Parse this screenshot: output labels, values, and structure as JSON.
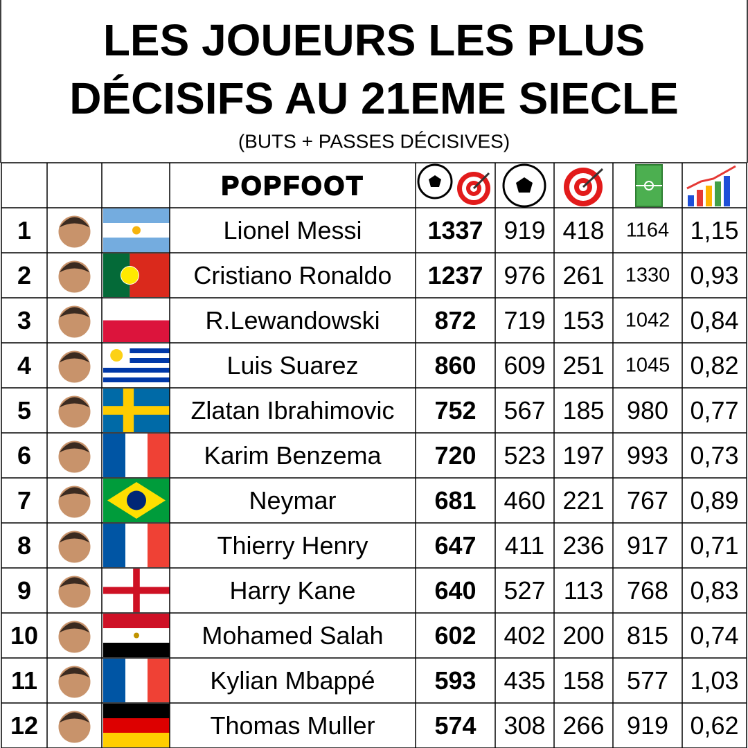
{
  "header": {
    "title_line1": "LES JOUEURS LES PLUS",
    "title_line2": "DÉCISIFS AU 21EME SIECLE",
    "subtitle": "(BUTS + PASSES DÉCISIVES)",
    "logo": "POPFOOT"
  },
  "table": {
    "rows": [
      [
        1,
        "Lionel Messi",
        1337,
        919,
        418,
        1164,
        "1,15"
      ],
      [
        2,
        "Cristiano Ronaldo",
        1237,
        976,
        261,
        1330,
        "0,93"
      ],
      [
        3,
        "R.Lewandowski",
        872,
        719,
        153,
        1042,
        "0,84"
      ],
      [
        4,
        "Luis Suarez",
        860,
        609,
        251,
        1045,
        "0,82"
      ],
      [
        5,
        "Zlatan Ibrahimovic",
        752,
        567,
        185,
        980,
        "0,77"
      ],
      [
        6,
        "Karim Benzema",
        720,
        523,
        197,
        993,
        "0,73"
      ],
      [
        7,
        "Neymar",
        681,
        460,
        221,
        767,
        "0,89"
      ],
      [
        8,
        "Thierry Henry",
        647,
        411,
        236,
        917,
        "0,71"
      ],
      [
        9,
        "Harry Kane",
        640,
        527,
        113,
        768,
        "0,83"
      ],
      [
        10,
        "Mohamed Salah",
        602,
        402,
        200,
        815,
        "0,74"
      ],
      [
        11,
        "Kylian Mbappé",
        593,
        435,
        158,
        577,
        "1,03"
      ],
      [
        12,
        "Thomas Muller",
        574,
        308,
        266,
        919,
        "0,62"
      ]
    ]
  }
}
